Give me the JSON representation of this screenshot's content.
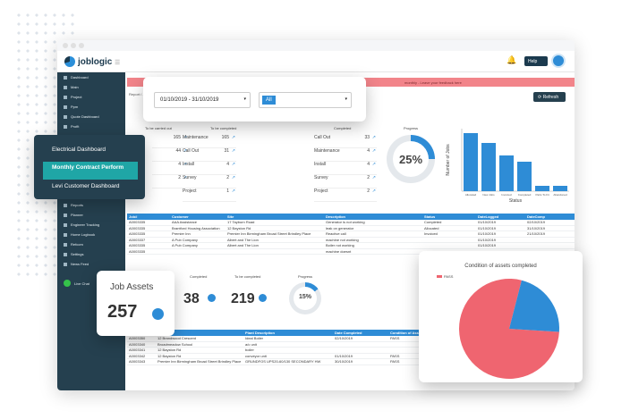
{
  "app": {
    "logo_text": "joblogic",
    "help_label": "Help",
    "alert_text": "monthly - Leave your feedback here",
    "refresh_label": "Refresh",
    "report_label": "Report / ..."
  },
  "sidebar": {
    "items": [
      "Dashboard",
      "Main",
      "Project",
      "Ppm",
      "Quote Dashboard",
      "Profit",
      "Electrical Dashboard",
      "Monthly Contract Perform",
      "Levi Customer Dashboard",
      "Quotes",
      "Invoices",
      "PPM",
      "Purchase Orders",
      "Reports",
      "Planner",
      "Engineer Tracking",
      "Home Logbook",
      "Refcom",
      "Settings",
      "News Feed",
      "Live Chat"
    ]
  },
  "filter": {
    "date_range": "01/10/2019 - 31/10/2019",
    "scope": "All"
  },
  "dashboard_menu": {
    "items": [
      "Electrical Dashboard",
      "Monthly Contract Perform",
      "Levi Customer Dashboard"
    ],
    "selected_index": 1
  },
  "kpis": {
    "to_be_carried_out": "To be carried out",
    "to_be_completed": "To be completed",
    "completed": "Completed",
    "progress": "Progress",
    "col1": [
      {
        "label": "",
        "value": "165"
      },
      {
        "label": "",
        "value": "44"
      },
      {
        "label": "",
        "value": "4"
      },
      {
        "label": "",
        "value": "2"
      }
    ],
    "col2": [
      {
        "label": "Maintenance",
        "value": "165"
      },
      {
        "label": "Call Out",
        "value": "31"
      },
      {
        "label": "Install",
        "value": "4"
      },
      {
        "label": "Survey",
        "value": "2"
      },
      {
        "label": "Project",
        "value": "1"
      }
    ],
    "col3": [
      {
        "label": "Call Out",
        "value": "33"
      },
      {
        "label": "Maintenance",
        "value": "4"
      },
      {
        "label": "Install",
        "value": "4"
      },
      {
        "label": "Survey",
        "value": "2"
      },
      {
        "label": "Project",
        "value": "2"
      }
    ],
    "progress_value": "25%"
  },
  "chart_data": [
    {
      "type": "bar",
      "categories": [
        "Allocated",
        "New Jobs",
        "Invoiced",
        "Completed",
        "Parts To Fit",
        "Abandoned"
      ],
      "values": [
        65,
        54,
        40,
        33,
        6,
        6
      ],
      "ylim": [
        0,
        70
      ],
      "xlabel": "Status",
      "ylabel": "Number of Jobs"
    },
    {
      "type": "pie",
      "title": "Condition of assets completed",
      "legend": [
        "PASS"
      ],
      "slices": [
        {
          "label": "PASS",
          "value": 78,
          "color": "#ef6570"
        },
        {
          "label": "",
          "value": 22,
          "color": "#2e8cd6"
        }
      ]
    }
  ],
  "jobs_table": {
    "headers": [
      "Job#",
      "Customer",
      "Site",
      "Description",
      "Status",
      "DateLogged",
      "DateComp"
    ],
    "rows": [
      [
        "A0003335",
        "AAA Assistance",
        "17 Tayburn Road",
        "Generator is not working",
        "Completed",
        "01/10/2019",
        "02/10/2019"
      ],
      [
        "A0003335",
        "Brantford Housing Association",
        "12 Bayston Rd",
        "leak on generator",
        "Allocated",
        "01/10/2019",
        "31/10/2019"
      ],
      [
        "A0003335",
        "Premier Inn",
        "Premier Inn Birmingham Broad Street Brindley Place",
        "Reactive call",
        "Invoiced",
        "01/10/2019",
        "21/10/2019"
      ],
      [
        "A0003337",
        "A Pub Company",
        "Albert and The Lion",
        "machine not working",
        "",
        "01/10/2019",
        ""
      ],
      [
        "A0003335",
        "A Pub Company",
        "Albert and The Lion",
        "Boiler not working",
        "",
        "01/10/2019",
        ""
      ],
      [
        "A0003335",
        "",
        "",
        "machine doesnt",
        "",
        "",
        ""
      ]
    ]
  },
  "job_assets": {
    "title": "Job Assets",
    "value": "257",
    "completed_label": "Completed",
    "completed_value": "38",
    "tbc_label": "To be completed",
    "tbc_value": "219",
    "progress_label": "Progress",
    "progress_value": "15%"
  },
  "assets_table": {
    "headers": [
      "Job#",
      "Site",
      "Plant Description",
      "Date Completed",
      "Condition of Asset"
    ],
    "rows": [
      [
        "A0003350",
        "12 Brandwood Crescent",
        "Ideal Boiler",
        "02/10/2019",
        "PASS"
      ],
      [
        "A0003340",
        "Broadmeadow School",
        "a/c unit",
        "",
        ""
      ],
      [
        "A0003341",
        "12 Bayston Rd",
        "boiler",
        "",
        ""
      ],
      [
        "A0003342",
        "12 Bayston Rd",
        "conveyor unit",
        "01/10/2019",
        "PASS"
      ],
      [
        "A0003343",
        "Premier Inn Birmingham Broad Street Brindley Place",
        "GRUNDFOS UPS20-60/130 SECONDARY HW",
        "30/10/2019",
        "PASS"
      ]
    ]
  }
}
